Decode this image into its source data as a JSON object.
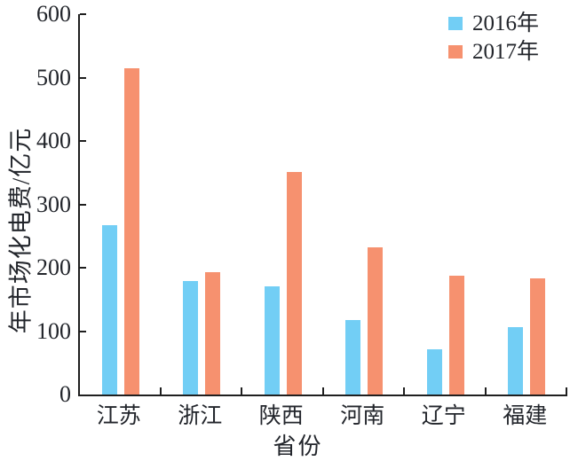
{
  "chart_data": {
    "type": "bar",
    "title": "",
    "xlabel": "省份",
    "ylabel": "年市场化电费/亿元",
    "ylim": [
      0,
      600
    ],
    "yticks": [
      0,
      100,
      200,
      300,
      400,
      500,
      600
    ],
    "grid": false,
    "legend_position": "top-right",
    "categories": [
      "江苏",
      "浙江",
      "陕西",
      "河南",
      "辽宁",
      "福建"
    ],
    "series": [
      {
        "name": "2016年",
        "color": "#72CEF5",
        "values": [
          267,
          179,
          170,
          118,
          71,
          107
        ]
      },
      {
        "name": "2017年",
        "color": "#F6916F",
        "values": [
          515,
          193,
          351,
          232,
          187,
          183
        ]
      }
    ]
  },
  "colors": {
    "axis": "#1f1f1f",
    "text": "#22252b",
    "background": "#ffffff",
    "series_2016": "#72CEF5",
    "series_2017": "#F6916F"
  }
}
